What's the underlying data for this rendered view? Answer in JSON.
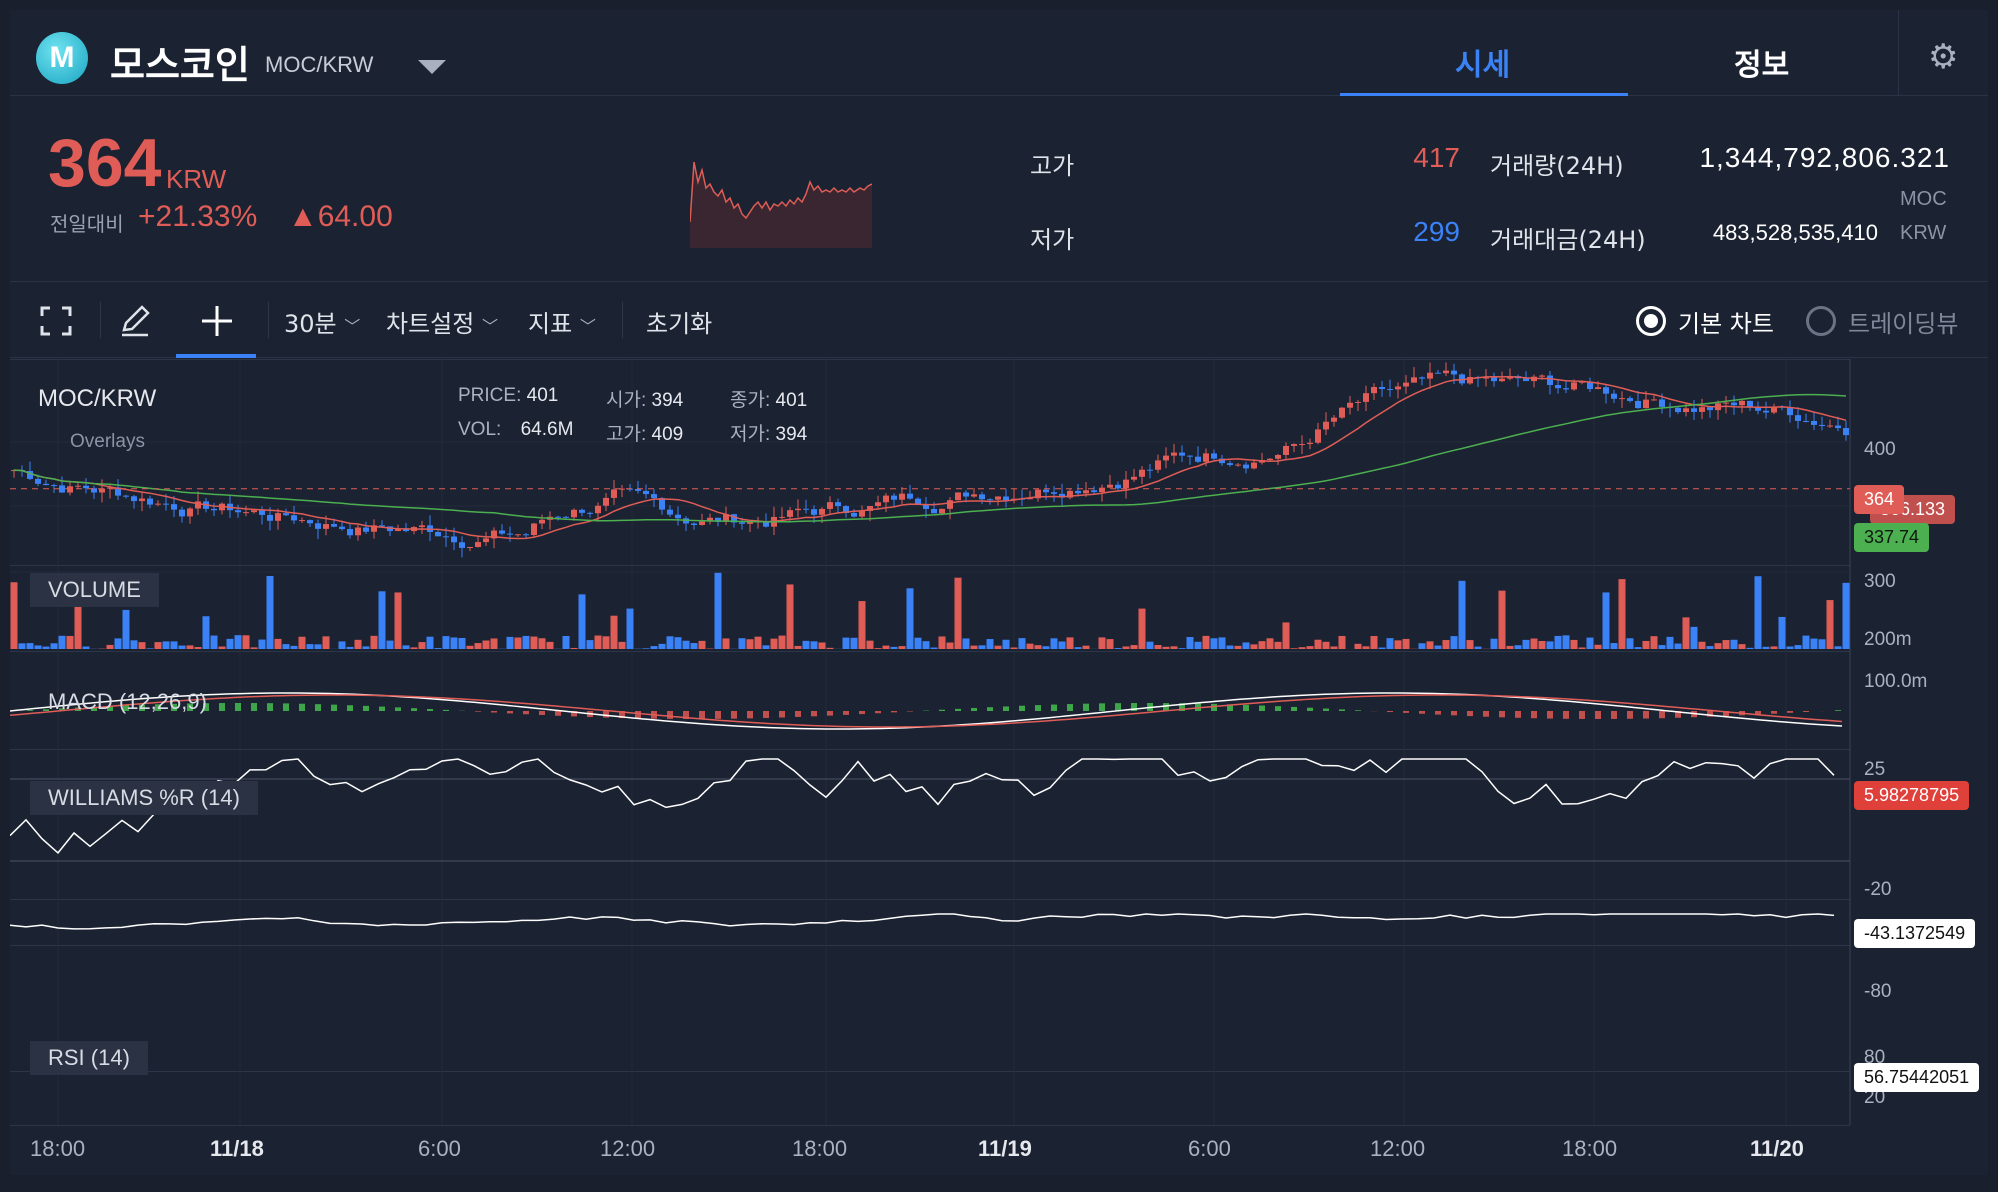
{
  "header": {
    "coin_name": "모스코인",
    "pair": "MOC/KRW",
    "tabs": [
      {
        "label": "시세",
        "active": true
      },
      {
        "label": "정보",
        "active": false
      }
    ],
    "logo_letter": "M"
  },
  "summary": {
    "price": "364",
    "price_unit": "KRW",
    "change_label": "전일대비",
    "change_pct": "+21.33%",
    "change_abs": "▲64.00",
    "high_label": "고가",
    "high_value": "417",
    "low_label": "저가",
    "low_value": "299",
    "volume_label": "거래량(24H)",
    "volume_value": "1,344,792,806.321",
    "volume_unit": "MOC",
    "amount_label": "거래대금(24H)",
    "amount_value": "483,528,535,410",
    "amount_unit": "KRW",
    "colors": {
      "up": "#e05d57",
      "down": "#3b82f6"
    }
  },
  "toolbar": {
    "interval": "30분",
    "chart_settings": "차트설정",
    "indicators": "지표",
    "reset": "초기화",
    "view_basic": "기본 차트",
    "view_trading": "트레이딩뷰"
  },
  "chart": {
    "symbol": "MOC/KRW",
    "overlays_label": "Overlays",
    "ohlc": {
      "price_label": "PRICE:",
      "price": "401",
      "open_label": "시가:",
      "open": "394",
      "close_label": "종가:",
      "close": "401",
      "vol_label": "VOL:",
      "vol": "64.6M",
      "high_label": "고가:",
      "high": "409",
      "low_label": "저가:",
      "low": "394"
    },
    "panes": {
      "volume": "VOLUME",
      "macd": "MACD (12,26,9)",
      "williams": "WILLIAMS %R (14)",
      "rsi": "RSI (14)"
    },
    "price_axis": [
      "400",
      "300"
    ],
    "volume_axis": [
      "200m",
      "100.0m"
    ],
    "macd_axis": [
      "25"
    ],
    "williams_axis": [
      "-20",
      "-80"
    ],
    "rsi_axis": [
      "80",
      "20"
    ],
    "tags": {
      "last_price": "364",
      "ma_red": "366.133",
      "ma_green": "337.74",
      "macd": "5.98278795",
      "williams": "-43.1372549",
      "rsi": "56.75442051"
    },
    "time_axis": [
      {
        "label": "18:00",
        "bold": false
      },
      {
        "label": "11/18",
        "bold": true
      },
      {
        "label": "6:00",
        "bold": false
      },
      {
        "label": "12:00",
        "bold": false
      },
      {
        "label": "18:00",
        "bold": false
      },
      {
        "label": "11/19",
        "bold": true
      },
      {
        "label": "6:00",
        "bold": false
      },
      {
        "label": "12:00",
        "bold": false
      },
      {
        "label": "18:00",
        "bold": false
      },
      {
        "label": "11/20",
        "bold": true
      }
    ]
  }
}
